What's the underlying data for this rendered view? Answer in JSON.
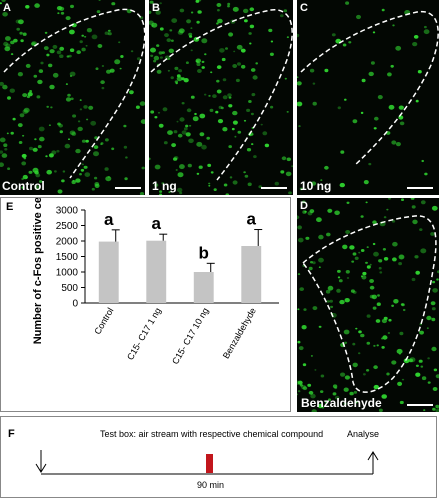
{
  "colors": {
    "cell": "#2fd42f",
    "bar": "#c4c4c4",
    "marker": "#c2161c",
    "background": "#030703"
  },
  "panels": {
    "A": {
      "letter": "A",
      "condition": "Control"
    },
    "B": {
      "letter": "B",
      "condition": "1 ng"
    },
    "C": {
      "letter": "C",
      "condition": "10 ng"
    },
    "D": {
      "letter": "D",
      "condition": "Benzaldehyde"
    }
  },
  "panel_e": {
    "letter": "E"
  },
  "chart_data": {
    "type": "bar",
    "categories": [
      "Control",
      "C15- C17  1 ng",
      "C15- C17 10 ng",
      "Benzaldehyde"
    ],
    "values": [
      1980,
      2010,
      1000,
      1840
    ],
    "errors": [
      380,
      210,
      280,
      530
    ],
    "significance": [
      "a",
      "a",
      "b",
      "a"
    ],
    "ylabel": "Number of c-Fos positive cells",
    "xlabel": "",
    "ylim": [
      0,
      3000
    ],
    "yticks": [
      0,
      500,
      1000,
      1500,
      2000,
      2500,
      3000
    ],
    "grid": false
  },
  "panel_f": {
    "letter": "F",
    "description": "Test box: air stream with respective chemical compound",
    "end_label": "Analyse",
    "duration": "90 min"
  }
}
